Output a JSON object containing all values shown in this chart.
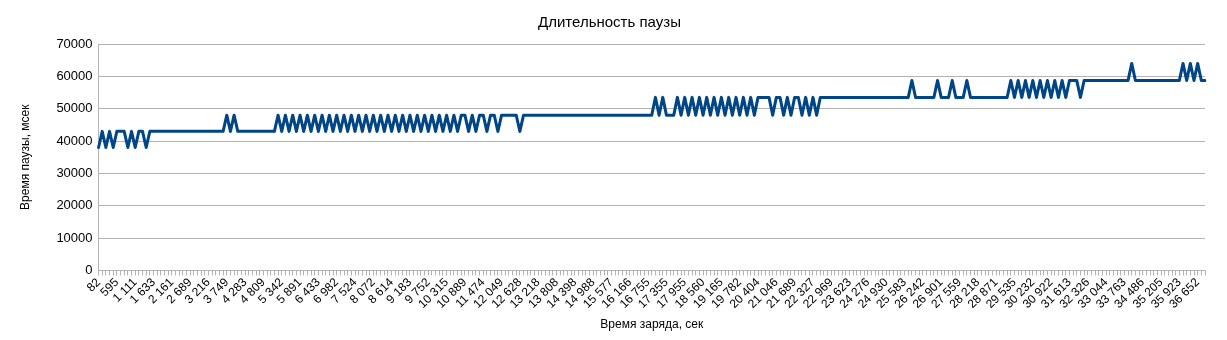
{
  "chart_data": {
    "type": "line",
    "title": "Длительность паузы",
    "xlabel": "Время заряда, сек",
    "ylabel": "Время паузы, мсек",
    "categories": [
      "82",
      null,
      null,
      null,
      null,
      "595",
      null,
      null,
      null,
      null,
      "1 111",
      null,
      null,
      null,
      null,
      "1 633",
      null,
      null,
      null,
      null,
      "2 161",
      null,
      null,
      null,
      null,
      "2 689",
      null,
      null,
      null,
      null,
      "3 216",
      null,
      null,
      null,
      null,
      "3 749",
      null,
      null,
      null,
      null,
      "4 283",
      null,
      null,
      null,
      null,
      "4 809",
      null,
      null,
      null,
      null,
      "5 342",
      null,
      null,
      null,
      null,
      "5 891",
      null,
      null,
      null,
      null,
      "6 433",
      null,
      null,
      null,
      null,
      "6 982",
      null,
      null,
      null,
      null,
      "7 524",
      null,
      null,
      null,
      null,
      "8 072",
      null,
      null,
      null,
      null,
      "8 614",
      null,
      null,
      null,
      null,
      "9 183",
      null,
      null,
      null,
      null,
      "9 752",
      null,
      null,
      null,
      null,
      "10 315",
      null,
      null,
      null,
      null,
      "10 889",
      null,
      null,
      null,
      null,
      "11 474",
      null,
      null,
      null,
      null,
      "12 049",
      null,
      null,
      null,
      null,
      "12 628",
      null,
      null,
      null,
      null,
      "13 218",
      null,
      null,
      null,
      null,
      "13 808",
      null,
      null,
      null,
      null,
      "14 398",
      null,
      null,
      null,
      null,
      "14 988",
      null,
      null,
      null,
      null,
      "15 577",
      null,
      null,
      null,
      null,
      "16 166",
      null,
      null,
      null,
      null,
      "16 755",
      null,
      null,
      null,
      null,
      "17 355",
      null,
      null,
      null,
      null,
      "17 955",
      null,
      null,
      null,
      null,
      "18 560",
      null,
      null,
      null,
      null,
      "19 165",
      null,
      null,
      null,
      null,
      "19 782",
      null,
      null,
      null,
      null,
      "20 404",
      null,
      null,
      null,
      null,
      "21 046",
      null,
      null,
      null,
      null,
      "21 689",
      null,
      null,
      null,
      null,
      "22 327",
      null,
      null,
      null,
      null,
      "22 969",
      null,
      null,
      null,
      null,
      "23 623",
      null,
      null,
      null,
      null,
      "24 276",
      null,
      null,
      null,
      null,
      "24 930",
      null,
      null,
      null,
      null,
      "25 583",
      null,
      null,
      null,
      null,
      "26 242",
      null,
      null,
      null,
      null,
      "26 901",
      null,
      null,
      null,
      null,
      "27 559",
      null,
      null,
      null,
      null,
      "28 218",
      null,
      null,
      null,
      null,
      "28 871",
      null,
      null,
      null,
      null,
      "29 535",
      null,
      null,
      null,
      null,
      "30 232",
      null,
      null,
      null,
      null,
      "30 922",
      null,
      null,
      null,
      null,
      "31 613",
      null,
      null,
      null,
      null,
      "32 326",
      null,
      null,
      null,
      null,
      "33 044",
      null,
      null,
      null,
      null,
      "33 763",
      null,
      null,
      null,
      null,
      "34 486",
      null,
      null,
      null,
      null,
      "35 205",
      null,
      null,
      null,
      null,
      "35 923",
      null,
      null,
      null,
      null,
      "36 652",
      null,
      null
    ],
    "series": [
      {
        "color": "#004586",
        "values": [
          38000,
          43000,
          38000,
          43000,
          38000,
          43000,
          43000,
          43000,
          38000,
          43000,
          38000,
          43000,
          43000,
          38000,
          43000,
          43000,
          43000,
          43000,
          43000,
          43000,
          43000,
          43000,
          43000,
          43000,
          43000,
          43000,
          43000,
          43000,
          43000,
          43000,
          43000,
          43000,
          43000,
          43000,
          43000,
          48000,
          43000,
          48000,
          43000,
          43000,
          43000,
          43000,
          43000,
          43000,
          43000,
          43000,
          43000,
          43000,
          43000,
          48000,
          43000,
          48000,
          43000,
          48000,
          43000,
          48000,
          43000,
          48000,
          43000,
          48000,
          43000,
          48000,
          43000,
          48000,
          43000,
          48000,
          43000,
          48000,
          43000,
          48000,
          43000,
          48000,
          43000,
          48000,
          43000,
          48000,
          43000,
          48000,
          43000,
          48000,
          43000,
          48000,
          43000,
          48000,
          43000,
          48000,
          43000,
          48000,
          43000,
          48000,
          43000,
          48000,
          43000,
          48000,
          43000,
          48000,
          43000,
          48000,
          43000,
          48000,
          48000,
          43000,
          48000,
          43000,
          48000,
          48000,
          43000,
          48000,
          48000,
          43000,
          48000,
          48000,
          48000,
          48000,
          48000,
          43000,
          48000,
          48000,
          48000,
          48000,
          48000,
          48000,
          48000,
          48000,
          48000,
          48000,
          48000,
          48000,
          48000,
          48000,
          48000,
          48000,
          48000,
          48000,
          48000,
          48000,
          48000,
          48000,
          48000,
          48000,
          48000,
          48000,
          48000,
          48000,
          48000,
          48000,
          48000,
          48000,
          48000,
          48000,
          48000,
          48000,
          53500,
          48000,
          53500,
          48000,
          48000,
          48000,
          53500,
          48000,
          53500,
          48000,
          53500,
          48000,
          53500,
          48000,
          53500,
          48000,
          53500,
          48000,
          53500,
          48000,
          53500,
          48000,
          53500,
          48000,
          53500,
          48000,
          53500,
          48000,
          53500,
          53500,
          53500,
          53500,
          48000,
          53500,
          53500,
          48000,
          53500,
          48000,
          53500,
          53500,
          48000,
          53500,
          48000,
          53500,
          48000,
          53500,
          53500,
          53500,
          53500,
          53500,
          53500,
          53500,
          53500,
          53500,
          53500,
          53500,
          53500,
          53500,
          53500,
          53500,
          53500,
          53500,
          53500,
          53500,
          53500,
          53500,
          53500,
          53500,
          53500,
          53500,
          58700,
          53500,
          53500,
          53500,
          53500,
          53500,
          53500,
          58700,
          53500,
          53500,
          53500,
          58700,
          53500,
          53500,
          53500,
          58700,
          53500,
          53500,
          53500,
          53500,
          53500,
          53500,
          53500,
          53500,
          53500,
          53500,
          53500,
          58700,
          53500,
          58700,
          53500,
          58700,
          53500,
          58700,
          53500,
          58700,
          53500,
          58700,
          53500,
          58700,
          53500,
          58700,
          53500,
          58700,
          58700,
          58700,
          53500,
          58700,
          58700,
          58700,
          58700,
          58700,
          58700,
          58700,
          58700,
          58700,
          58700,
          58700,
          58700,
          58700,
          64000,
          58700,
          58700,
          58700,
          58700,
          58700,
          58700,
          58700,
          58700,
          58700,
          58700,
          58700,
          58700,
          58700,
          64000,
          58700,
          64000,
          58700,
          64000,
          58700,
          58700
        ]
      }
    ],
    "ylim": [
      0,
      70000
    ],
    "yticks": [
      0,
      10000,
      20000,
      30000,
      40000,
      50000,
      60000,
      70000
    ],
    "grid": "y",
    "legend": false,
    "marker": "none",
    "line_style": "solid"
  }
}
